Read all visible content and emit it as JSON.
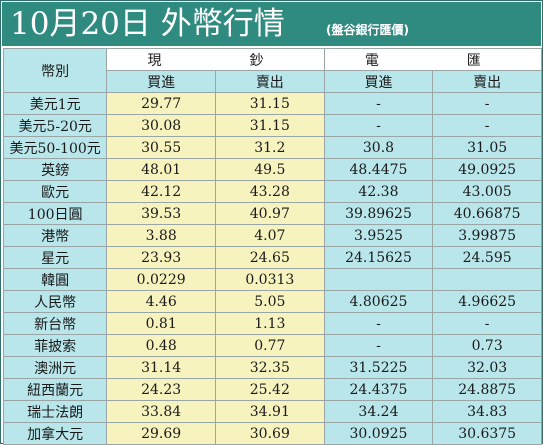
{
  "title": {
    "main": "10月20日 外幣行情",
    "source": "(盤谷銀行匯價)"
  },
  "headers": {
    "currency": "幣別",
    "cash": "現　　鈔",
    "telegraphic": "電　　匯",
    "buy": "買進",
    "sell": "賣出"
  },
  "colors": {
    "title_bar": "#2f8a80",
    "cash_cells": "#f7f3bf",
    "tt_cells": "#b9e6ea",
    "header_cells": "#b9e6ea"
  },
  "rows": [
    {
      "name": "美元1元",
      "cash_buy": "29.77",
      "cash_sell": "31.15",
      "tt_buy": "-",
      "tt_sell": "-"
    },
    {
      "name": "美元5-20元",
      "cash_buy": "30.08",
      "cash_sell": "31.15",
      "tt_buy": "-",
      "tt_sell": "-"
    },
    {
      "name": "美元50-100元",
      "cash_buy": "30.55",
      "cash_sell": "31.2",
      "tt_buy": "30.8",
      "tt_sell": "31.05"
    },
    {
      "name": "英鎊",
      "cash_buy": "48.01",
      "cash_sell": "49.5",
      "tt_buy": "48.4475",
      "tt_sell": "49.0925"
    },
    {
      "name": "歐元",
      "cash_buy": "42.12",
      "cash_sell": "43.28",
      "tt_buy": "42.38",
      "tt_sell": "43.005"
    },
    {
      "name": "100日圓",
      "cash_buy": "39.53",
      "cash_sell": "40.97",
      "tt_buy": "39.89625",
      "tt_sell": "40.66875"
    },
    {
      "name": "港幣",
      "cash_buy": "3.88",
      "cash_sell": "4.07",
      "tt_buy": "3.9525",
      "tt_sell": "3.99875"
    },
    {
      "name": "星元",
      "cash_buy": "23.93",
      "cash_sell": "24.65",
      "tt_buy": "24.15625",
      "tt_sell": "24.595"
    },
    {
      "name": "韓圓",
      "cash_buy": "0.0229",
      "cash_sell": "0.0313",
      "tt_buy": "",
      "tt_sell": ""
    },
    {
      "name": "人民幣",
      "cash_buy": "4.46",
      "cash_sell": "5.05",
      "tt_buy": "4.80625",
      "tt_sell": "4.96625"
    },
    {
      "name": "新台幣",
      "cash_buy": "0.81",
      "cash_sell": "1.13",
      "tt_buy": "-",
      "tt_sell": "-"
    },
    {
      "name": "菲披索",
      "cash_buy": "0.48",
      "cash_sell": "0.77",
      "tt_buy": "-",
      "tt_sell": "0.73"
    },
    {
      "name": "澳洲元",
      "cash_buy": "31.14",
      "cash_sell": "32.35",
      "tt_buy": "31.5225",
      "tt_sell": "32.03"
    },
    {
      "name": "紐西蘭元",
      "cash_buy": "24.23",
      "cash_sell": "25.42",
      "tt_buy": "24.4375",
      "tt_sell": "24.8875"
    },
    {
      "name": "瑞士法朗",
      "cash_buy": "33.84",
      "cash_sell": "34.91",
      "tt_buy": "34.24",
      "tt_sell": "34.83"
    },
    {
      "name": "加拿大元",
      "cash_buy": "29.69",
      "cash_sell": "30.69",
      "tt_buy": "30.0925",
      "tt_sell": "30.6375"
    }
  ]
}
